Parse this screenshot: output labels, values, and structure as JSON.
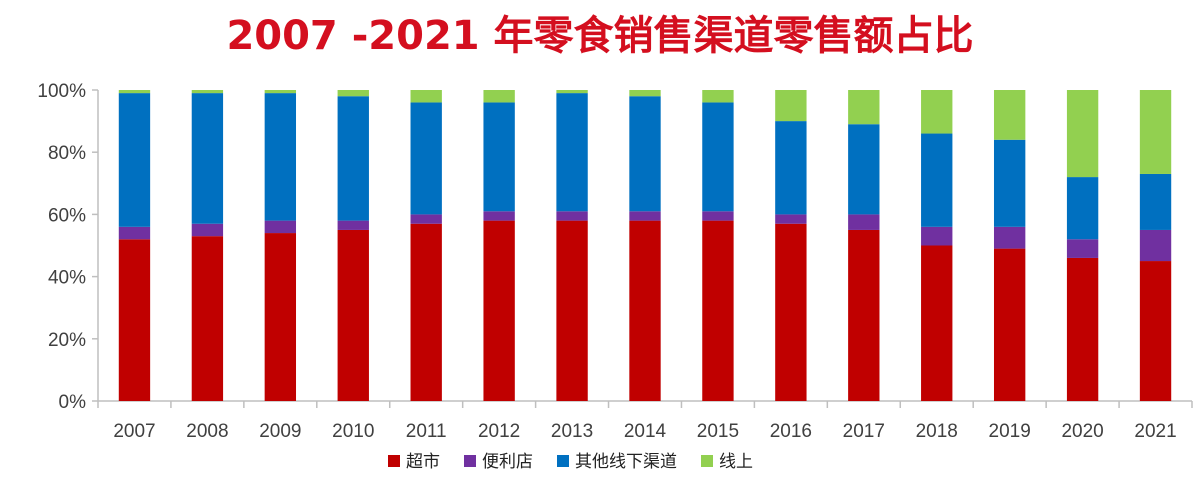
{
  "chart_data": {
    "type": "bar",
    "stacked": true,
    "title": "2007 -2021 年零食销售渠道零售额占比",
    "xlabel": "",
    "ylabel": "",
    "ylim": [
      0,
      100
    ],
    "y_ticks": [
      "0%",
      "20%",
      "40%",
      "60%",
      "80%",
      "100%"
    ],
    "categories": [
      "2007",
      "2008",
      "2009",
      "2010",
      "2011",
      "2012",
      "2013",
      "2014",
      "2015",
      "2016",
      "2017",
      "2018",
      "2019",
      "2020",
      "2021"
    ],
    "series": [
      {
        "name": "超市",
        "color": "#c00000",
        "values": [
          52,
          53,
          54,
          55,
          57,
          58,
          58,
          58,
          58,
          57,
          55,
          50,
          49,
          46,
          45
        ]
      },
      {
        "name": "便利店",
        "color": "#7030a0",
        "values": [
          4,
          4,
          4,
          3,
          3,
          3,
          3,
          3,
          3,
          3,
          5,
          6,
          7,
          6,
          10
        ]
      },
      {
        "name": "其他线下渠道",
        "color": "#0070c0",
        "values": [
          43,
          42,
          41,
          40,
          36,
          35,
          38,
          37,
          35,
          30,
          29,
          30,
          28,
          20,
          18
        ]
      },
      {
        "name": "线上",
        "color": "#92d050",
        "values": [
          1,
          1,
          1,
          2,
          4,
          4,
          1,
          2,
          4,
          10,
          11,
          14,
          16,
          28,
          27
        ]
      }
    ],
    "legend_position": "bottom",
    "grid": false
  }
}
